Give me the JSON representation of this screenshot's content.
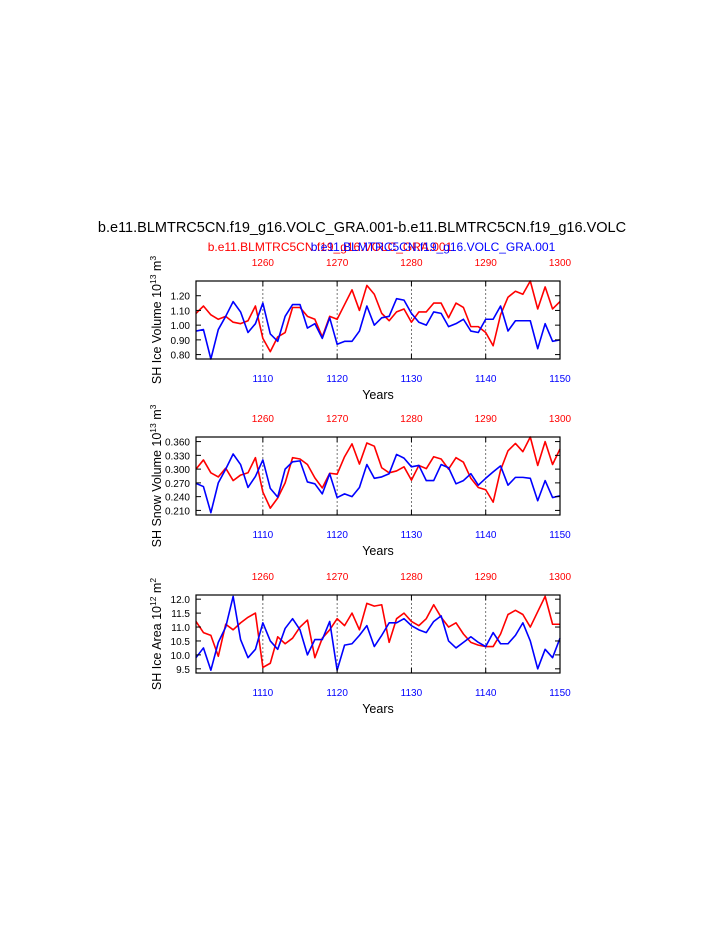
{
  "title": "b.e11.BLMTRC5CN.f19_g16.VOLC_GRA.001-b.e11.BLMTRC5CN.f19_g16.VOLC",
  "legend": {
    "red_label": "b.e11.BLMTRC5CN.f19_g16.VOLC_GRA.001",
    "blue_label": "b.e11.BLMTRC5CN.f19_g16.VOLC_GRA.001",
    "red_color": "#ff0000",
    "blue_color": "#0000ff"
  },
  "chart_data": [
    {
      "type": "line",
      "ylabel": "SH Ice Volume 10",
      "ylabel_sup": "13",
      "ylabel_unit": " m",
      "ylabel_unit_sup": "3",
      "xlabel": "Years",
      "ylim": [
        0.77,
        1.3
      ],
      "yticks": [
        0.8,
        0.9,
        1.0,
        1.1,
        1.2
      ],
      "ytick_labels": [
        "0.80",
        "0.90",
        "1.00",
        "1.10",
        "1.20"
      ],
      "x_bottom": {
        "range": [
          1101,
          1150
        ],
        "ticks": [
          1110,
          1120,
          1130,
          1140,
          1150
        ],
        "color": "#0000ff"
      },
      "x_top": {
        "range": [
          1251,
          1300
        ],
        "ticks": [
          1260,
          1270,
          1280,
          1290,
          1300
        ],
        "color": "#ff0000"
      },
      "series": [
        {
          "color": "#ff0000",
          "axis": "top",
          "values": [
            1.08,
            1.13,
            1.07,
            1.04,
            1.06,
            1.02,
            1.01,
            1.03,
            1.13,
            0.91,
            0.82,
            0.92,
            0.95,
            1.12,
            1.12,
            1.06,
            1.04,
            0.92,
            1.06,
            1.04,
            1.14,
            1.24,
            1.1,
            1.27,
            1.21,
            1.08,
            1.03,
            1.09,
            1.11,
            1.02,
            1.09,
            1.09,
            1.15,
            1.15,
            1.05,
            1.15,
            1.12,
            0.99,
            0.99,
            0.95,
            0.86,
            1.07,
            1.19,
            1.23,
            1.21,
            1.3,
            1.11,
            1.26,
            1.11,
            1.16
          ]
        },
        {
          "color": "#0000ff",
          "axis": "bottom",
          "values": [
            0.96,
            0.97,
            0.77,
            0.97,
            1.06,
            1.16,
            1.09,
            0.95,
            1.01,
            1.15,
            0.94,
            0.89,
            1.06,
            1.14,
            1.14,
            0.98,
            1.01,
            0.91,
            1.05,
            0.87,
            0.89,
            0.89,
            0.96,
            1.13,
            1.0,
            1.05,
            1.06,
            1.18,
            1.17,
            1.08,
            1.02,
            1.0,
            1.09,
            1.08,
            0.99,
            1.01,
            1.04,
            0.96,
            0.95,
            1.04,
            1.04,
            1.13,
            0.96,
            1.03,
            1.03,
            1.03,
            0.84,
            1.01,
            0.89,
            0.9
          ]
        }
      ]
    },
    {
      "type": "line",
      "ylabel": "SH Snow Volume 10",
      "ylabel_sup": "13",
      "ylabel_unit": " m",
      "ylabel_unit_sup": "3",
      "xlabel": "Years",
      "ylim": [
        0.2,
        0.37
      ],
      "yticks": [
        0.21,
        0.24,
        0.27,
        0.3,
        0.33,
        0.36
      ],
      "ytick_labels": [
        "0.210",
        "0.240",
        "0.270",
        "0.300",
        "0.330",
        "0.360"
      ],
      "x_bottom": {
        "range": [
          1101,
          1150
        ],
        "ticks": [
          1110,
          1120,
          1130,
          1140,
          1150
        ],
        "color": "#0000ff"
      },
      "x_top": {
        "range": [
          1251,
          1300
        ],
        "ticks": [
          1260,
          1270,
          1280,
          1290,
          1300
        ],
        "color": "#ff0000"
      },
      "series": [
        {
          "color": "#ff0000",
          "axis": "top",
          "values": [
            0.3,
            0.32,
            0.292,
            0.283,
            0.302,
            0.275,
            0.287,
            0.292,
            0.325,
            0.25,
            0.215,
            0.237,
            0.27,
            0.325,
            0.322,
            0.31,
            0.281,
            0.259,
            0.291,
            0.289,
            0.327,
            0.355,
            0.311,
            0.357,
            0.35,
            0.303,
            0.292,
            0.296,
            0.305,
            0.276,
            0.308,
            0.301,
            0.327,
            0.322,
            0.3,
            0.325,
            0.315,
            0.28,
            0.26,
            0.255,
            0.228,
            0.298,
            0.34,
            0.356,
            0.338,
            0.37,
            0.308,
            0.36,
            0.31,
            0.344
          ]
        },
        {
          "color": "#0000ff",
          "axis": "bottom",
          "values": [
            0.269,
            0.262,
            0.205,
            0.27,
            0.3,
            0.333,
            0.31,
            0.26,
            0.284,
            0.32,
            0.258,
            0.239,
            0.3,
            0.316,
            0.318,
            0.272,
            0.268,
            0.246,
            0.29,
            0.238,
            0.246,
            0.24,
            0.26,
            0.31,
            0.28,
            0.283,
            0.29,
            0.332,
            0.324,
            0.305,
            0.308,
            0.275,
            0.275,
            0.31,
            0.303,
            0.268,
            0.275,
            0.29,
            0.265,
            0.28,
            0.294,
            0.307,
            0.265,
            0.282,
            0.282,
            0.28,
            0.231,
            0.275,
            0.238,
            0.242
          ]
        }
      ]
    },
    {
      "type": "line",
      "ylabel": "SH Ice Area 10",
      "ylabel_sup": "12",
      "ylabel_unit": " m",
      "ylabel_unit_sup": "2",
      "xlabel": "Years",
      "ylim": [
        9.35,
        12.15
      ],
      "yticks": [
        9.5,
        10.0,
        10.5,
        11.0,
        11.5,
        12.0
      ],
      "ytick_labels": [
        "9.5",
        "10.0",
        "10.5",
        "11.0",
        "11.5",
        "12.0"
      ],
      "x_bottom": {
        "range": [
          1101,
          1150
        ],
        "ticks": [
          1110,
          1120,
          1130,
          1140,
          1150
        ],
        "color": "#0000ff"
      },
      "x_top": {
        "range": [
          1251,
          1300
        ],
        "ticks": [
          1260,
          1270,
          1280,
          1290,
          1300
        ],
        "color": "#ff0000"
      },
      "series": [
        {
          "color": "#ff0000",
          "axis": "top",
          "values": [
            11.2,
            10.8,
            10.7,
            9.95,
            11.1,
            10.9,
            11.15,
            11.35,
            11.5,
            9.55,
            9.7,
            10.65,
            10.4,
            10.6,
            11.0,
            11.25,
            9.9,
            10.6,
            10.9,
            11.3,
            11.05,
            11.5,
            10.9,
            11.85,
            11.75,
            11.8,
            10.45,
            11.3,
            11.5,
            11.2,
            11.05,
            11.3,
            11.8,
            11.35,
            11.0,
            11.15,
            10.75,
            10.45,
            10.35,
            10.3,
            10.3,
            10.75,
            11.45,
            11.6,
            11.45,
            11.0,
            11.55,
            12.1,
            11.1,
            11.1
          ]
        },
        {
          "color": "#0000ff",
          "axis": "bottom",
          "values": [
            9.9,
            10.25,
            9.45,
            10.45,
            11.0,
            12.1,
            10.55,
            9.9,
            10.2,
            11.15,
            10.5,
            10.2,
            10.95,
            11.3,
            10.9,
            10.0,
            10.55,
            10.55,
            11.2,
            9.45,
            10.35,
            10.4,
            10.7,
            11.05,
            10.3,
            10.7,
            11.15,
            11.15,
            11.3,
            11.05,
            10.9,
            10.8,
            11.2,
            11.4,
            10.5,
            10.25,
            10.45,
            10.65,
            10.45,
            10.3,
            10.8,
            10.4,
            10.4,
            10.7,
            11.15,
            10.5,
            9.5,
            10.2,
            9.9,
            10.6
          ]
        }
      ]
    }
  ]
}
